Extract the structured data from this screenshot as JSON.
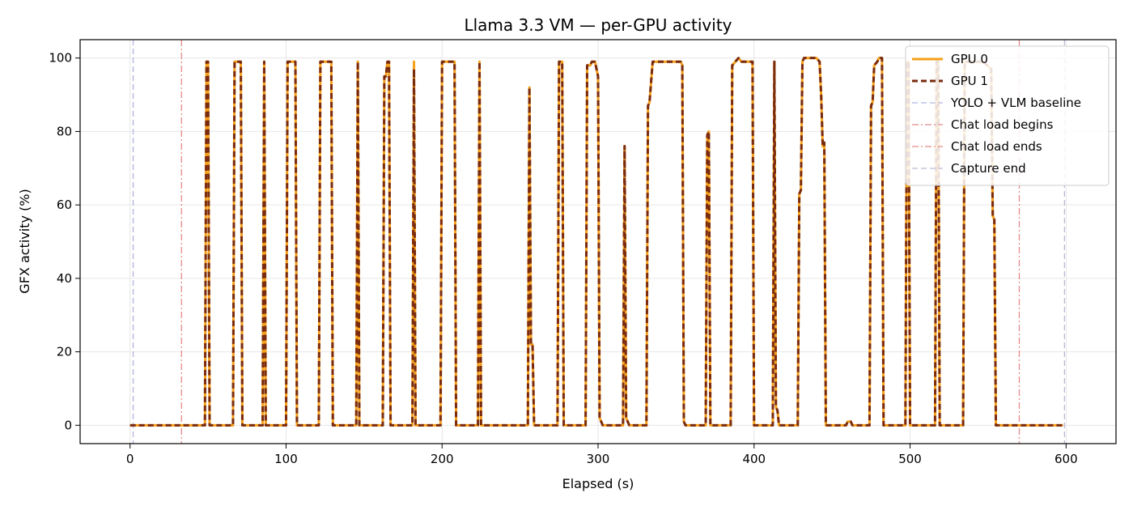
{
  "chart_data": {
    "type": "line",
    "title": "Llama 3.3 VM — per-GPU activity",
    "xlabel": "Elapsed (s)",
    "ylabel": "GFX activity (%)",
    "xlim": [
      -32,
      632
    ],
    "ylim": [
      -5,
      105
    ],
    "xticks": [
      0,
      100,
      200,
      300,
      400,
      500,
      600
    ],
    "yticks": [
      0,
      20,
      40,
      60,
      80,
      100
    ],
    "grid": true,
    "legend_position": "top-right",
    "series": [
      {
        "name": "GPU 0",
        "color": "#f5a01a",
        "style": "solid",
        "points": [
          [
            0,
            0
          ],
          [
            48,
            0
          ],
          [
            49,
            99
          ],
          [
            50,
            99
          ],
          [
            51,
            0
          ],
          [
            66,
            0
          ],
          [
            67,
            99
          ],
          [
            71,
            99
          ],
          [
            72,
            0
          ],
          [
            85,
            0
          ],
          [
            86,
            99
          ],
          [
            87,
            0
          ],
          [
            100,
            0
          ],
          [
            101,
            99
          ],
          [
            106,
            99
          ],
          [
            107,
            0
          ],
          [
            121,
            0
          ],
          [
            122,
            99
          ],
          [
            129,
            99
          ],
          [
            130,
            0
          ],
          [
            145,
            0
          ],
          [
            146,
            99
          ],
          [
            147,
            0
          ],
          [
            162,
            0
          ],
          [
            163,
            95
          ],
          [
            164,
            95
          ],
          [
            165,
            99
          ],
          [
            166,
            99
          ],
          [
            167,
            0
          ],
          [
            181,
            0
          ],
          [
            182,
            99
          ],
          [
            183,
            0
          ],
          [
            199,
            0
          ],
          [
            200,
            99
          ],
          [
            208,
            99
          ],
          [
            209,
            0
          ],
          [
            223,
            0
          ],
          [
            224,
            99
          ],
          [
            225,
            0
          ],
          [
            255,
            0
          ],
          [
            256,
            92
          ],
          [
            257,
            22
          ],
          [
            258,
            22
          ],
          [
            259,
            0
          ],
          [
            274,
            0
          ],
          [
            275,
            99
          ],
          [
            277,
            99
          ],
          [
            278,
            0
          ],
          [
            292,
            0
          ],
          [
            293,
            98
          ],
          [
            295,
            98
          ],
          [
            296,
            99
          ],
          [
            298,
            99
          ],
          [
            300,
            95
          ],
          [
            301,
            2
          ],
          [
            302,
            1
          ],
          [
            303,
            0
          ],
          [
            316,
            0
          ],
          [
            317,
            76
          ],
          [
            318,
            2
          ],
          [
            319,
            1
          ],
          [
            320,
            0
          ],
          [
            331,
            0
          ],
          [
            332,
            87
          ],
          [
            333,
            88
          ],
          [
            335,
            99
          ],
          [
            353,
            99
          ],
          [
            354,
            98
          ],
          [
            355,
            1
          ],
          [
            356,
            0
          ],
          [
            369,
            0
          ],
          [
            370,
            79
          ],
          [
            371,
            80
          ],
          [
            372,
            0
          ],
          [
            385,
            0
          ],
          [
            386,
            98
          ],
          [
            388,
            99
          ],
          [
            390,
            100
          ],
          [
            392,
            99
          ],
          [
            399,
            99
          ],
          [
            400,
            0
          ],
          [
            412,
            0
          ],
          [
            413,
            99
          ],
          [
            414,
            5
          ],
          [
            415,
            4
          ],
          [
            416,
            0
          ],
          [
            428,
            0
          ],
          [
            429,
            63
          ],
          [
            430,
            64
          ],
          [
            431,
            99
          ],
          [
            432,
            100
          ],
          [
            440,
            100
          ],
          [
            442,
            99
          ],
          [
            443,
            90
          ],
          [
            444,
            76
          ],
          [
            445,
            77
          ],
          [
            446,
            0
          ],
          [
            459,
            0
          ],
          [
            460,
            1
          ],
          [
            462,
            1
          ],
          [
            463,
            0
          ],
          [
            474,
            0
          ],
          [
            475,
            87
          ],
          [
            476,
            88
          ],
          [
            477,
            98
          ],
          [
            479,
            99
          ],
          [
            480,
            100
          ],
          [
            482,
            100
          ],
          [
            483,
            0
          ],
          [
            497,
            0
          ],
          [
            498,
            99
          ],
          [
            499,
            99
          ],
          [
            500,
            0
          ],
          [
            516,
            0
          ],
          [
            517,
            99
          ],
          [
            518,
            99
          ],
          [
            519,
            0
          ],
          [
            534,
            0
          ],
          [
            535,
            99
          ],
          [
            547,
            99
          ],
          [
            552,
            97
          ],
          [
            553,
            57
          ],
          [
            554,
            56
          ],
          [
            555,
            0
          ],
          [
            598,
            0
          ]
        ]
      },
      {
        "name": "GPU 1",
        "color": "#7a2c10",
        "style": "dashed",
        "points": [
          [
            0,
            0
          ],
          [
            48,
            0
          ],
          [
            49,
            99
          ],
          [
            50,
            99
          ],
          [
            51,
            0
          ],
          [
            66,
            0
          ],
          [
            67,
            99
          ],
          [
            71,
            99
          ],
          [
            72,
            0
          ],
          [
            85,
            0
          ],
          [
            86,
            99
          ],
          [
            87,
            0
          ],
          [
            100,
            0
          ],
          [
            101,
            99
          ],
          [
            106,
            99
          ],
          [
            107,
            0
          ],
          [
            121,
            0
          ],
          [
            122,
            99
          ],
          [
            129,
            99
          ],
          [
            130,
            0
          ],
          [
            145,
            0
          ],
          [
            146,
            99
          ],
          [
            147,
            0
          ],
          [
            162,
            0
          ],
          [
            163,
            95
          ],
          [
            164,
            95
          ],
          [
            165,
            99
          ],
          [
            166,
            99
          ],
          [
            167,
            0
          ],
          [
            181,
            0
          ],
          [
            182,
            97
          ],
          [
            183,
            0
          ],
          [
            199,
            0
          ],
          [
            200,
            99
          ],
          [
            208,
            99
          ],
          [
            209,
            0
          ],
          [
            223,
            0
          ],
          [
            224,
            99
          ],
          [
            225,
            0
          ],
          [
            255,
            0
          ],
          [
            256,
            92
          ],
          [
            257,
            22
          ],
          [
            258,
            22
          ],
          [
            259,
            0
          ],
          [
            274,
            0
          ],
          [
            275,
            99
          ],
          [
            277,
            99
          ],
          [
            278,
            0
          ],
          [
            292,
            0
          ],
          [
            293,
            98
          ],
          [
            295,
            98
          ],
          [
            296,
            99
          ],
          [
            298,
            99
          ],
          [
            300,
            95
          ],
          [
            301,
            2
          ],
          [
            302,
            1
          ],
          [
            303,
            0
          ],
          [
            316,
            0
          ],
          [
            317,
            76
          ],
          [
            318,
            2
          ],
          [
            319,
            1
          ],
          [
            320,
            0
          ],
          [
            331,
            0
          ],
          [
            332,
            87
          ],
          [
            333,
            88
          ],
          [
            335,
            99
          ],
          [
            353,
            99
          ],
          [
            354,
            98
          ],
          [
            355,
            1
          ],
          [
            356,
            0
          ],
          [
            369,
            0
          ],
          [
            370,
            79
          ],
          [
            371,
            80
          ],
          [
            372,
            0
          ],
          [
            385,
            0
          ],
          [
            386,
            98
          ],
          [
            388,
            99
          ],
          [
            390,
            100
          ],
          [
            392,
            99
          ],
          [
            399,
            99
          ],
          [
            400,
            0
          ],
          [
            412,
            0
          ],
          [
            413,
            99
          ],
          [
            414,
            5
          ],
          [
            415,
            4
          ],
          [
            416,
            0
          ],
          [
            428,
            0
          ],
          [
            429,
            63
          ],
          [
            430,
            64
          ],
          [
            431,
            99
          ],
          [
            432,
            100
          ],
          [
            440,
            100
          ],
          [
            442,
            99
          ],
          [
            443,
            90
          ],
          [
            444,
            76
          ],
          [
            445,
            77
          ],
          [
            446,
            0
          ],
          [
            459,
            0
          ],
          [
            460,
            1
          ],
          [
            462,
            1
          ],
          [
            463,
            0
          ],
          [
            474,
            0
          ],
          [
            475,
            87
          ],
          [
            476,
            88
          ],
          [
            477,
            98
          ],
          [
            479,
            99
          ],
          [
            480,
            100
          ],
          [
            482,
            100
          ],
          [
            483,
            0
          ],
          [
            497,
            0
          ],
          [
            498,
            99
          ],
          [
            499,
            99
          ],
          [
            500,
            0
          ],
          [
            516,
            0
          ],
          [
            517,
            99
          ],
          [
            518,
            99
          ],
          [
            519,
            0
          ],
          [
            534,
            0
          ],
          [
            535,
            99
          ],
          [
            547,
            99
          ],
          [
            552,
            97
          ],
          [
            553,
            57
          ],
          [
            554,
            56
          ],
          [
            555,
            0
          ],
          [
            598,
            0
          ]
        ]
      }
    ],
    "vlines": [
      {
        "name": "YOLO + VLM baseline",
        "x": 2,
        "color": "#b0b4e0",
        "style": "dashed"
      },
      {
        "name": "Chat load begins",
        "x": 33,
        "color": "#e88a8a",
        "style": "dashdot"
      },
      {
        "name": "Chat load ends",
        "x": 570,
        "color": "#e88a8a",
        "style": "dashdot"
      },
      {
        "name": "Capture end",
        "x": 599,
        "color": "#b8bcd4",
        "style": "dashed"
      }
    ]
  }
}
